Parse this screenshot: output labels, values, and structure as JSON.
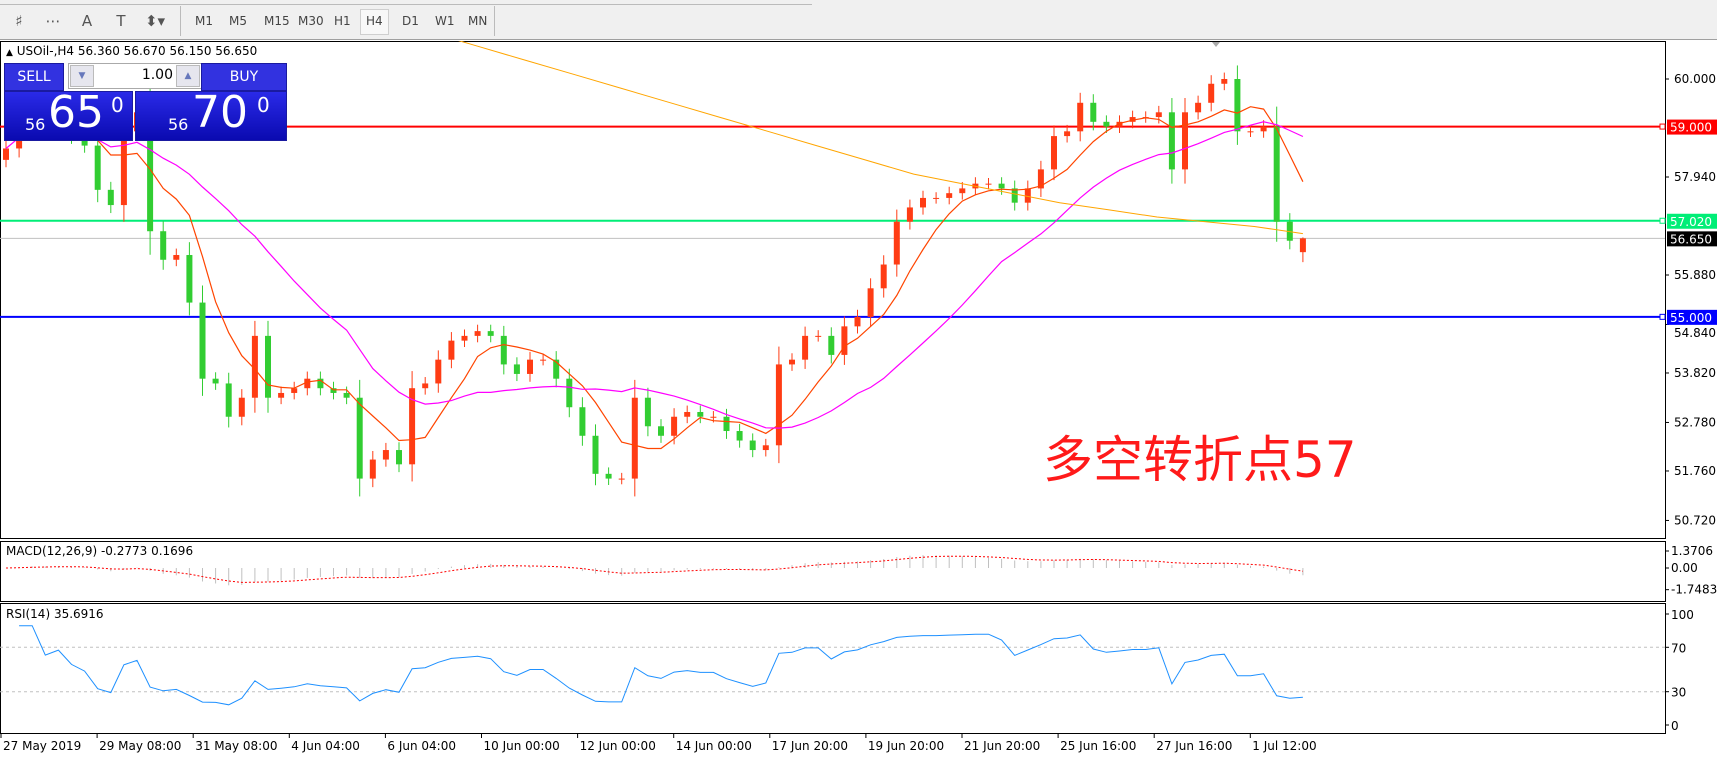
{
  "toolbar": {
    "tools": [
      {
        "icon": "fibonacci-expansion-icon",
        "glyph": "♯"
      },
      {
        "icon": "fibonacci-fan-icon",
        "glyph": "⋯"
      },
      {
        "icon": "text-icon",
        "glyph": "A"
      },
      {
        "icon": "text-label-icon",
        "glyph": "T"
      },
      {
        "icon": "arrows-dropdown-icon",
        "glyph": "⬍▾"
      }
    ],
    "timeframes": [
      "M1",
      "M5",
      "M15",
      "M30",
      "H1",
      "H4",
      "D1",
      "W1",
      "MN"
    ],
    "active_timeframe": "H4"
  },
  "header": {
    "symbol_line": "USOil-,H4  56.360 56.670 56.150 56.650"
  },
  "trade_panel": {
    "sell_label": "SELL",
    "buy_label": "BUY",
    "lot": "1.00",
    "sell_big": "65",
    "sell_small": "56",
    "sell_sup": "0",
    "buy_big": "70",
    "buy_small": "56",
    "buy_sup": "0"
  },
  "annotation": "多空转折点57",
  "colors": {
    "up_candle": "#ff3c14",
    "down_candle": "#32cd32",
    "ma_fast": "#ff4500",
    "ma_mid": "#ff00ff",
    "ma_long": "#ffa500",
    "rsi": "#1e90ff",
    "macd_signal": "#ff0000",
    "macd_hist": "#c0c0c0"
  },
  "chart_data": {
    "type": "candlestick",
    "symbol": "USOil-",
    "timeframe": "H4",
    "price_axis": {
      "ticks": [
        "60.000",
        "57.940",
        "55.880",
        "54.840",
        "53.820",
        "52.780",
        "51.760",
        "50.720"
      ],
      "range": [
        50.4,
        61.0
      ]
    },
    "horizontal_lines": [
      {
        "value": 59.0,
        "label": "59.000",
        "color": "#ff0000"
      },
      {
        "value": 57.02,
        "label": "57.020",
        "color": "#00ee77"
      },
      {
        "value": 55.0,
        "label": "55.000",
        "color": "#0000ff"
      },
      {
        "value": 56.65,
        "label": "56.650",
        "color": "#c0c0c0",
        "tag_color": "#000000"
      }
    ],
    "x_ticks": [
      "27 May 2019",
      "29 May 08:00",
      "31 May 08:00",
      "4 Jun 04:00",
      "6 Jun 04:00",
      "10 Jun 00:00",
      "12 Jun 00:00",
      "14 Jun 00:00",
      "17 Jun 20:00",
      "19 Jun 20:00",
      "21 Jun 20:00",
      "25 Jun 16:00",
      "27 Jun 16:00",
      "1 Jul 12:00"
    ],
    "closes": [
      58.54,
      59.0,
      59.2,
      58.9,
      59.1,
      58.8,
      58.6,
      57.67,
      57.35,
      58.9,
      59.3,
      56.8,
      56.2,
      56.3,
      55.3,
      53.7,
      53.6,
      52.9,
      53.3,
      54.6,
      53.3,
      53.4,
      53.5,
      53.7,
      53.5,
      53.4,
      53.3,
      51.6,
      52.0,
      52.2,
      51.9,
      53.5,
      53.6,
      54.1,
      54.5,
      54.6,
      54.7,
      54.6,
      54.0,
      53.8,
      54.1,
      54.1,
      53.7,
      53.1,
      52.5,
      51.7,
      51.6,
      51.6,
      53.3,
      52.7,
      52.5,
      52.9,
      53.0,
      52.9,
      52.9,
      52.6,
      52.4,
      52.2,
      52.3,
      54.0,
      54.1,
      54.6,
      54.6,
      54.2,
      54.8,
      55.0,
      55.6,
      56.1,
      57.0,
      57.3,
      57.5,
      57.5,
      57.6,
      57.7,
      57.8,
      57.8,
      57.7,
      57.4,
      57.7,
      58.1,
      58.8,
      58.9,
      59.5,
      59.1,
      59.0,
      59.1,
      59.2,
      59.2,
      59.3,
      58.1,
      59.3,
      59.5,
      59.9,
      60.0,
      58.9,
      58.9,
      59.0,
      57.0,
      56.6,
      56.65
    ],
    "ma_long": [
      61.6,
      61.3,
      61.0,
      60.7,
      60.4,
      60.1,
      59.8,
      59.5,
      59.2,
      58.9,
      58.6,
      58.3,
      58.0,
      57.8,
      57.6,
      57.4,
      57.25,
      57.1,
      57.0,
      56.9,
      56.75
    ],
    "last_bar": {
      "open": 56.36,
      "high": 56.67,
      "low": 56.15,
      "close": 56.65
    },
    "macd": {
      "label": "MACD(12,26,9) -0.2773 0.1696",
      "ticks": [
        "1.3706",
        "0.00",
        "-1.7483"
      ]
    },
    "rsi": {
      "label": "RSI(14) 35.6916",
      "ticks": [
        "100",
        "70",
        "30",
        "0"
      ],
      "levels": [
        70,
        30
      ]
    }
  }
}
